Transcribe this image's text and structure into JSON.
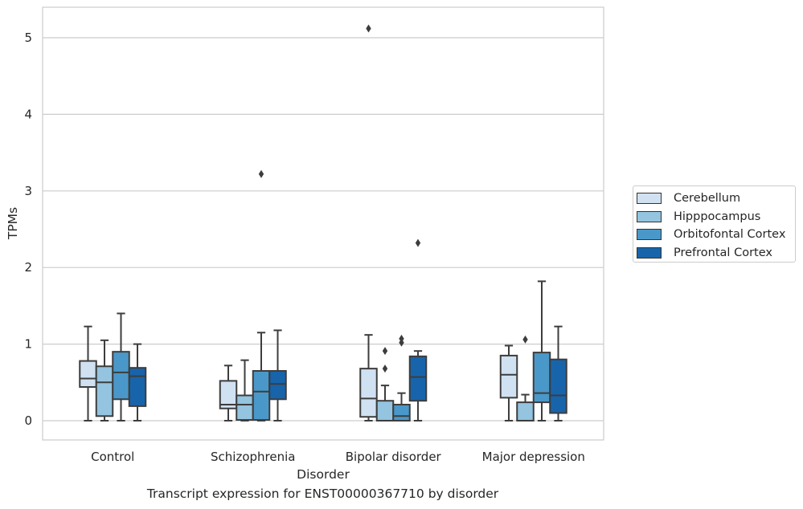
{
  "caption": "Transcript expression for ENST00000367710 by disorder",
  "chart_data": {
    "type": "box",
    "xlabel": "Disorder",
    "ylabel": "TPMs",
    "ylim": [
      -0.25,
      5.4
    ],
    "yticks": [
      0,
      1,
      2,
      3,
      4,
      5
    ],
    "grid": "horizontal",
    "legend_position": "right",
    "categories": [
      "Control",
      "Schizophrenia",
      "Bipolar disorder",
      "Major depression"
    ],
    "series": [
      {
        "name": "Cerebellum",
        "color": "#d0e1f2",
        "boxes": [
          {
            "whislo": 0.0,
            "q1": 0.44,
            "med": 0.55,
            "q3": 0.78,
            "whishi": 1.23,
            "fliers": []
          },
          {
            "whislo": 0.0,
            "q1": 0.16,
            "med": 0.21,
            "q3": 0.52,
            "whishi": 0.72,
            "fliers": []
          },
          {
            "whislo": 0.0,
            "q1": 0.05,
            "med": 0.29,
            "q3": 0.68,
            "whishi": 1.12,
            "fliers": [
              5.12
            ]
          },
          {
            "whislo": 0.0,
            "q1": 0.3,
            "med": 0.6,
            "q3": 0.85,
            "whishi": 0.98,
            "fliers": []
          }
        ]
      },
      {
        "name": "Hipppocampus",
        "color": "#94c4df",
        "boxes": [
          {
            "whislo": 0.0,
            "q1": 0.06,
            "med": 0.5,
            "q3": 0.71,
            "whishi": 1.05,
            "fliers": []
          },
          {
            "whislo": 0.0,
            "q1": 0.01,
            "med": 0.21,
            "q3": 0.33,
            "whishi": 0.79,
            "fliers": []
          },
          {
            "whislo": 0.0,
            "q1": 0.0,
            "med": 0.0,
            "q3": 0.26,
            "whishi": 0.46,
            "fliers": [
              0.68,
              0.91
            ]
          },
          {
            "whislo": 0.0,
            "q1": 0.0,
            "med": 0.0,
            "q3": 0.24,
            "whishi": 0.34,
            "fliers": [
              1.06
            ]
          }
        ]
      },
      {
        "name": "Orbitofontal Cortex",
        "color": "#4a98c9",
        "boxes": [
          {
            "whislo": 0.0,
            "q1": 0.28,
            "med": 0.63,
            "q3": 0.9,
            "whishi": 1.4,
            "fliers": []
          },
          {
            "whislo": 0.0,
            "q1": 0.01,
            "med": 0.38,
            "q3": 0.65,
            "whishi": 1.15,
            "fliers": [
              3.22
            ]
          },
          {
            "whislo": 0.0,
            "q1": 0.0,
            "med": 0.06,
            "q3": 0.21,
            "whishi": 0.36,
            "fliers": [
              1.02,
              1.07
            ]
          },
          {
            "whislo": 0.0,
            "q1": 0.24,
            "med": 0.36,
            "q3": 0.89,
            "whishi": 1.82,
            "fliers": []
          }
        ]
      },
      {
        "name": "Prefrontal Cortex",
        "color": "#1764ab",
        "boxes": [
          {
            "whislo": 0.0,
            "q1": 0.19,
            "med": 0.58,
            "q3": 0.69,
            "whishi": 1.0,
            "fliers": []
          },
          {
            "whislo": 0.0,
            "q1": 0.28,
            "med": 0.48,
            "q3": 0.65,
            "whishi": 1.18,
            "fliers": []
          },
          {
            "whislo": 0.0,
            "q1": 0.26,
            "med": 0.57,
            "q3": 0.84,
            "whishi": 0.91,
            "fliers": [
              2.32
            ]
          },
          {
            "whislo": 0.0,
            "q1": 0.1,
            "med": 0.33,
            "q3": 0.8,
            "whishi": 1.23,
            "fliers": []
          }
        ]
      }
    ]
  }
}
